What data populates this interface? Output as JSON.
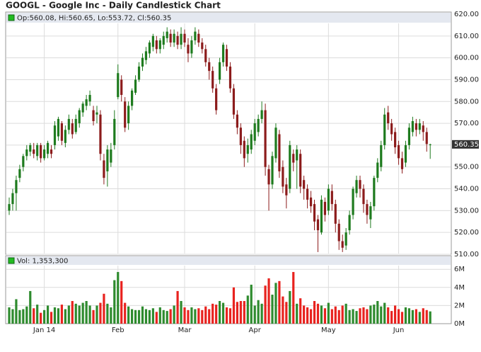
{
  "chart_data": {
    "type": "candlestick",
    "title": "GOOGL - Google Inc - Daily Candlestick Chart",
    "legend_text": "Op:560.08, Hi:560.65, Lo:553.72, Cl:560.35",
    "volume_text": "Vol: 1,353,300",
    "up_color": "#1e7b1e",
    "down_color": "#8c1c1c",
    "volume_up_color": "#2e8b2e",
    "volume_down_color": "#e8231f",
    "grid": true,
    "categories": [
      null,
      null,
      null,
      null,
      null,
      null,
      null,
      null,
      null,
      null,
      "Jan 14",
      null,
      null,
      null,
      null,
      null,
      null,
      null,
      null,
      null,
      null,
      null,
      null,
      null,
      null,
      null,
      null,
      null,
      null,
      null,
      null,
      "Feb",
      null,
      null,
      null,
      null,
      null,
      null,
      null,
      null,
      null,
      null,
      null,
      null,
      null,
      null,
      null,
      null,
      null,
      null,
      "Mar",
      null,
      null,
      null,
      null,
      null,
      null,
      null,
      null,
      null,
      null,
      null,
      null,
      null,
      null,
      null,
      null,
      null,
      null,
      null,
      "Apr",
      null,
      null,
      null,
      null,
      null,
      null,
      null,
      null,
      null,
      null,
      null,
      null,
      null,
      null,
      null,
      null,
      null,
      null,
      null,
      null,
      "May",
      null,
      null,
      null,
      null,
      null,
      null,
      null,
      null,
      null,
      null,
      null,
      null,
      null,
      null,
      null,
      null,
      null,
      null,
      null,
      "Jun",
      null,
      null,
      null,
      null,
      null,
      null,
      null,
      null,
      null
    ],
    "open": [
      530,
      533,
      538,
      545,
      550,
      555,
      557,
      558,
      555,
      560,
      554,
      556,
      558,
      560,
      564,
      570,
      561,
      567,
      570,
      566,
      570,
      575,
      578,
      580,
      576,
      574,
      574,
      553,
      548,
      552,
      560,
      582,
      590,
      580,
      570,
      578,
      584,
      590,
      596,
      599,
      602,
      605,
      608,
      604,
      606,
      609,
      611,
      607,
      610,
      606,
      611,
      606,
      602,
      608,
      611,
      607,
      604,
      598,
      594,
      586,
      590,
      598,
      604,
      596,
      586,
      574,
      568,
      562,
      556,
      558,
      562,
      566,
      572,
      576,
      549,
      542,
      554,
      565,
      550,
      542,
      540,
      556,
      553,
      556,
      544,
      540,
      536,
      533,
      526,
      520,
      534,
      530,
      539,
      533,
      524,
      516,
      514,
      521,
      528,
      538,
      544,
      540,
      533,
      526,
      532,
      545,
      550,
      560,
      575,
      570,
      566,
      560,
      554,
      552,
      560,
      566,
      570,
      567,
      569,
      566,
      560.08
    ],
    "high": [
      536,
      540,
      546,
      551,
      556,
      560,
      561,
      561,
      561,
      561,
      560,
      562,
      560,
      571,
      573,
      571,
      569,
      574,
      572,
      574,
      577,
      580,
      583,
      585,
      578,
      578,
      576,
      556,
      560,
      561,
      576,
      597,
      592,
      582,
      580,
      586,
      592,
      598,
      602,
      605,
      608,
      611,
      610,
      609,
      612,
      614,
      613,
      613,
      612,
      614,
      613,
      609,
      610,
      614,
      613,
      609,
      606,
      600,
      596,
      588,
      600,
      607,
      606,
      598,
      588,
      576,
      570,
      564,
      563,
      567,
      572,
      574,
      580,
      579,
      551,
      557,
      570,
      567,
      553,
      545,
      562,
      558,
      560,
      558,
      546,
      542,
      539,
      535,
      528,
      537,
      536,
      542,
      542,
      535,
      526,
      519,
      522,
      530,
      541,
      546,
      546,
      542,
      535,
      534,
      546,
      554,
      562,
      577,
      578,
      572,
      568,
      562,
      557,
      562,
      570,
      573,
      572,
      572,
      571,
      568,
      560.65
    ],
    "low": [
      528,
      530,
      530,
      543,
      548,
      553,
      555,
      554,
      553,
      552,
      553,
      554,
      554,
      558,
      562,
      560,
      559,
      565,
      563,
      565,
      568,
      573,
      576,
      578,
      569,
      570,
      553,
      542,
      541,
      550,
      558,
      581,
      580,
      566,
      567,
      576,
      583,
      589,
      594,
      597,
      600,
      603,
      602,
      602,
      604,
      607,
      605,
      605,
      604,
      604,
      605,
      598,
      600,
      606,
      605,
      602,
      596,
      590,
      584,
      574,
      588,
      596,
      594,
      584,
      572,
      565,
      556,
      550,
      552,
      556,
      560,
      564,
      570,
      546,
      530,
      540,
      552,
      545,
      538,
      531,
      538,
      548,
      540,
      538,
      535,
      531,
      529,
      521,
      511,
      519,
      525,
      528,
      530,
      520,
      512,
      511,
      512,
      519,
      526,
      536,
      536,
      529,
      524,
      522,
      530,
      543,
      548,
      558,
      567,
      562,
      556,
      551,
      547,
      550,
      558,
      564,
      564,
      565,
      562,
      557,
      553.72
    ],
    "close": [
      533,
      538,
      544,
      549,
      555,
      558,
      560,
      556,
      560,
      554,
      558,
      561,
      556,
      569,
      572,
      562,
      567,
      572,
      565,
      572,
      576,
      579,
      581,
      583,
      571,
      575,
      556,
      545,
      558,
      558,
      572,
      593,
      583,
      568,
      578,
      585,
      590,
      596,
      600,
      603,
      607,
      610,
      604,
      608,
      610,
      612,
      607,
      611,
      606,
      611,
      607,
      602,
      608,
      612,
      607,
      604,
      598,
      594,
      586,
      576,
      598,
      606,
      596,
      586,
      574,
      568,
      560,
      554,
      560,
      565,
      570,
      572,
      576,
      550,
      542,
      555,
      568,
      548,
      541,
      537,
      560,
      552,
      558,
      541,
      540,
      535,
      532,
      525,
      521,
      535,
      528,
      540,
      533,
      524,
      516,
      513,
      520,
      528,
      540,
      544,
      540,
      533,
      528,
      532,
      545,
      552,
      560,
      574,
      570,
      565,
      559,
      554,
      549,
      560,
      568,
      571,
      567,
      570,
      566,
      560.5,
      560.35
    ],
    "volume": [
      1.8,
      1.6,
      2.7,
      1.5,
      1.6,
      1.9,
      3.6,
      1.7,
      2.1,
      1.2,
      1.5,
      2.0,
      1.3,
      1.8,
      1.7,
      2.1,
      1.6,
      2.0,
      2.5,
      2.2,
      2.0,
      2.3,
      2.5,
      2.0,
      1.5,
      2.0,
      2.3,
      3.3,
      2.2,
      1.8,
      4.8,
      5.7,
      4.7,
      2.3,
      1.9,
      1.6,
      1.5,
      1.5,
      1.9,
      1.6,
      1.5,
      1.7,
      1.3,
      1.8,
      1.5,
      1.4,
      1.6,
      2.0,
      3.6,
      2.5,
      1.8,
      1.5,
      1.8,
      1.6,
      1.7,
      1.5,
      1.9,
      1.6,
      2.2,
      2.1,
      2.5,
      2.3,
      1.8,
      1.7,
      4.0,
      2.4,
      2.5,
      2.5,
      3.1,
      4.3,
      2.0,
      2.6,
      2.2,
      4.2,
      5.0,
      3.2,
      4.5,
      4.7,
      3.0,
      2.4,
      3.6,
      5.7,
      2.2,
      2.8,
      2.0,
      1.8,
      1.6,
      2.5,
      2.2,
      2.0,
      1.7,
      2.3,
      1.6,
      1.9,
      1.5,
      2.0,
      2.2,
      1.5,
      1.6,
      1.4,
      1.7,
      1.8,
      1.6,
      2.0,
      2.1,
      2.5,
      1.9,
      2.3,
      1.8,
      1.4,
      2.0,
      1.6,
      1.3,
      1.8,
      1.7,
      1.5,
      1.6,
      1.3,
      1.7,
      1.5,
      1.3533
    ],
    "ylim": [
      510,
      620
    ],
    "yticks": [
      {
        "value": 510,
        "label": "510.00"
      },
      {
        "value": 520,
        "label": "520.00"
      },
      {
        "value": 530,
        "label": "530.00"
      },
      {
        "value": 540,
        "label": "540.00"
      },
      {
        "value": 550,
        "label": "550.00"
      },
      {
        "value": 560,
        "label": "560.00"
      },
      {
        "value": 570,
        "label": "570.00"
      },
      {
        "value": 580,
        "label": "580.00"
      },
      {
        "value": 590,
        "label": "590.00"
      },
      {
        "value": 600,
        "label": "600.00"
      },
      {
        "value": 610,
        "label": "610.00"
      },
      {
        "value": 620,
        "label": "620.00"
      }
    ],
    "y2lim": [
      0,
      7.5
    ],
    "y2ticks": [
      {
        "value": 0,
        "label": "0M"
      },
      {
        "value": 2,
        "label": "2M"
      },
      {
        "value": 4,
        "label": "4M"
      },
      {
        "value": 6,
        "label": "6M"
      }
    ]
  }
}
